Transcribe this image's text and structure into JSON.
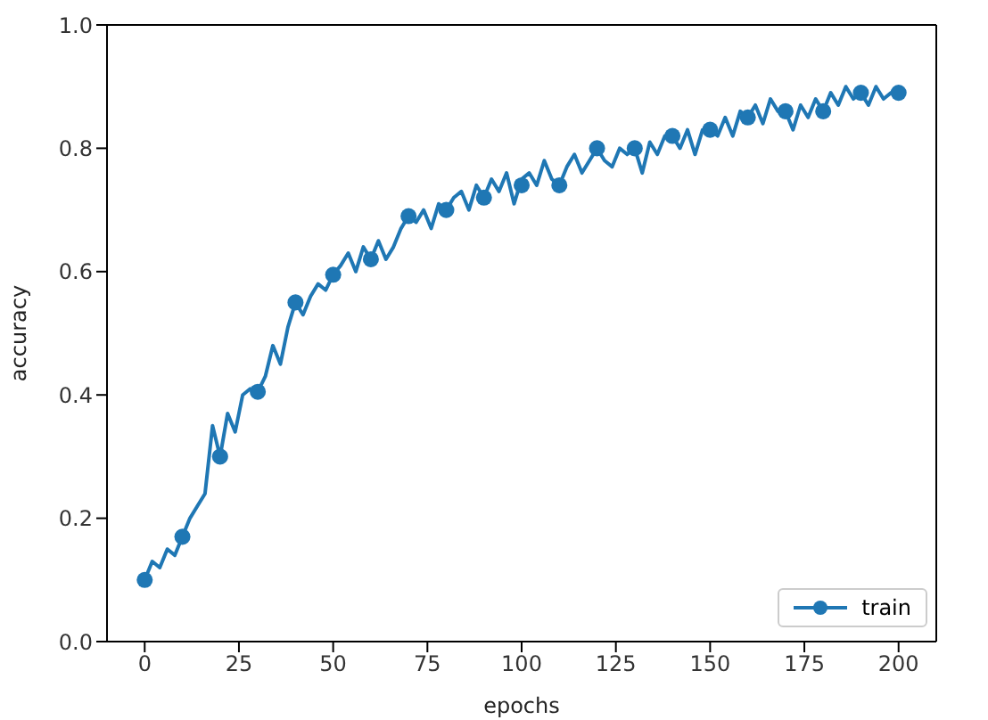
{
  "chart_data": {
    "type": "line",
    "xlabel": "epochs",
    "ylabel": "accuracy",
    "xlim": [
      -10,
      210
    ],
    "xticks": [
      0,
      25,
      50,
      75,
      100,
      125,
      150,
      175,
      200
    ],
    "ylim": [
      0,
      1
    ],
    "yticks": [
      {
        "value": 0,
        "label": "0.0"
      },
      {
        "value": 0.2,
        "label": "0.2"
      },
      {
        "value": 0.4,
        "label": "0.4"
      },
      {
        "value": 0.6,
        "label": "0.6"
      },
      {
        "value": 0.8,
        "label": "0.8"
      },
      {
        "value": 1,
        "label": "1.0"
      }
    ],
    "legend": "bottom right",
    "grid": false,
    "series": [
      {
        "name": "train",
        "color": "#1f77b4",
        "x": [
          0,
          2,
          4,
          6,
          8,
          10,
          12,
          14,
          16,
          18,
          20,
          22,
          24,
          26,
          28,
          30,
          32,
          34,
          36,
          38,
          40,
          42,
          44,
          46,
          48,
          50,
          52,
          54,
          56,
          58,
          60,
          62,
          64,
          66,
          68,
          70,
          72,
          74,
          76,
          78,
          80,
          82,
          84,
          86,
          88,
          90,
          92,
          94,
          96,
          98,
          100,
          102,
          104,
          106,
          108,
          110,
          112,
          114,
          116,
          118,
          120,
          122,
          124,
          126,
          128,
          130,
          132,
          134,
          136,
          138,
          140,
          142,
          144,
          146,
          148,
          150,
          152,
          154,
          156,
          158,
          160,
          162,
          164,
          166,
          168,
          170,
          172,
          174,
          176,
          178,
          180,
          182,
          184,
          186,
          188,
          190,
          192,
          194,
          196,
          198,
          200
        ],
        "values": [
          0.1,
          0.13,
          0.12,
          0.15,
          0.14,
          0.17,
          0.2,
          0.22,
          0.24,
          0.35,
          0.3,
          0.37,
          0.34,
          0.4,
          0.41,
          0.405,
          0.43,
          0.48,
          0.45,
          0.51,
          0.55,
          0.53,
          0.56,
          0.58,
          0.57,
          0.595,
          0.61,
          0.63,
          0.6,
          0.64,
          0.62,
          0.65,
          0.62,
          0.64,
          0.67,
          0.69,
          0.68,
          0.7,
          0.67,
          0.71,
          0.7,
          0.72,
          0.73,
          0.7,
          0.74,
          0.72,
          0.75,
          0.73,
          0.76,
          0.71,
          0.75,
          0.76,
          0.74,
          0.78,
          0.75,
          0.74,
          0.77,
          0.79,
          0.76,
          0.78,
          0.8,
          0.78,
          0.77,
          0.8,
          0.79,
          0.8,
          0.76,
          0.81,
          0.79,
          0.82,
          0.82,
          0.8,
          0.83,
          0.79,
          0.83,
          0.83,
          0.82,
          0.85,
          0.82,
          0.86,
          0.85,
          0.87,
          0.84,
          0.88,
          0.86,
          0.86,
          0.83,
          0.87,
          0.85,
          0.88,
          0.86,
          0.89,
          0.87,
          0.9,
          0.88,
          0.89,
          0.87,
          0.9,
          0.88,
          0.89,
          0.89
        ]
      },
      {
        "color": "#1f77b4",
        "type": "scatter",
        "marker": "circle",
        "x": [
          0,
          10,
          20,
          30,
          40,
          50,
          60,
          70,
          80,
          90,
          100,
          110,
          120,
          130,
          140,
          150,
          160,
          170,
          180,
          190,
          200
        ],
        "values": [
          0.1,
          0.17,
          0.3,
          0.405,
          0.55,
          0.595,
          0.62,
          0.69,
          0.7,
          0.72,
          0.74,
          0.74,
          0.8,
          0.8,
          0.82,
          0.83,
          0.85,
          0.86,
          0.86,
          0.89,
          0.89
        ]
      }
    ]
  }
}
